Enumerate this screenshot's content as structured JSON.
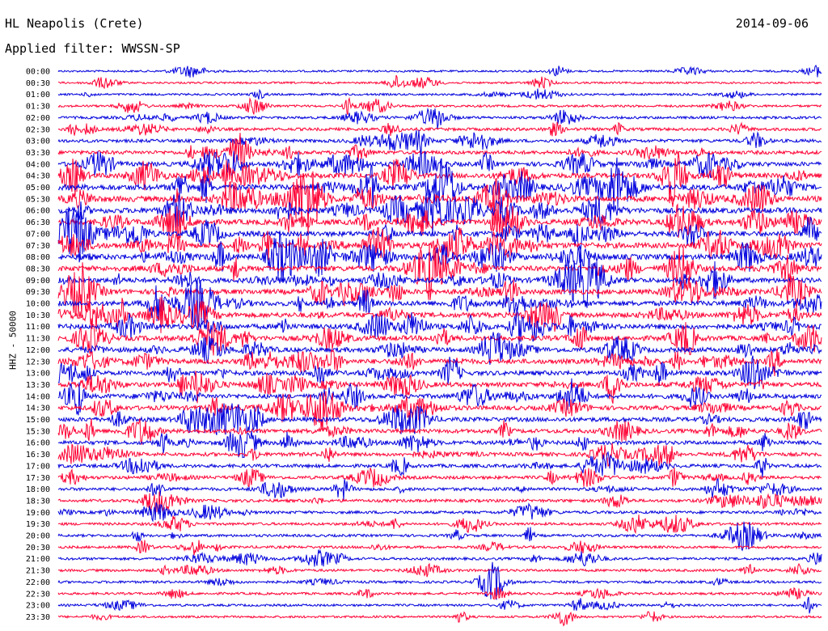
{
  "header": {
    "station": "HL Neapolis (Crete)",
    "date": "2014-09-06",
    "filter": "Applied filter: WWSSN-SP"
  },
  "chart_data": {
    "type": "line",
    "title": "HL Neapolis (Crete)",
    "subtitle": "Applied filter: WWSSN-SP",
    "ylabel": "HHZ - 50000",
    "xlabel": "",
    "date": "2014-09-06",
    "y_tick_labels": [
      "00:00",
      "00:30",
      "01:00",
      "01:30",
      "02:00",
      "02:30",
      "03:00",
      "03:30",
      "04:00",
      "04:30",
      "05:00",
      "05:30",
      "06:00",
      "06:30",
      "07:00",
      "07:30",
      "08:00",
      "08:30",
      "09:00",
      "09:30",
      "10:00",
      "10:30",
      "11:00",
      "11:30",
      "12:00",
      "12:30",
      "13:00",
      "13:30",
      "14:00",
      "14:30",
      "15:00",
      "15:30",
      "16:00",
      "16:30",
      "17:00",
      "17:30",
      "18:00",
      "18:30",
      "19:00",
      "19:30",
      "20:00",
      "20:30",
      "21:00",
      "21:30",
      "22:00",
      "22:30",
      "23:00",
      "23:30"
    ],
    "series_colors": [
      "#0000dd",
      "#ff0033"
    ],
    "line_activity": [
      0.15,
      0.15,
      0.18,
      0.22,
      0.3,
      0.38,
      0.45,
      0.55,
      0.7,
      0.85,
      1.0,
      1.0,
      0.95,
      0.9,
      0.9,
      0.95,
      0.95,
      0.9,
      0.85,
      0.85,
      0.85,
      0.85,
      0.85,
      0.85,
      0.8,
      0.8,
      0.75,
      0.75,
      0.75,
      0.7,
      0.7,
      0.65,
      0.6,
      0.55,
      0.5,
      0.45,
      0.42,
      0.38,
      0.35,
      0.32,
      0.3,
      0.3,
      0.3,
      0.28,
      0.28,
      0.25,
      0.22,
      0.2
    ],
    "grid": false,
    "legend": "none"
  }
}
